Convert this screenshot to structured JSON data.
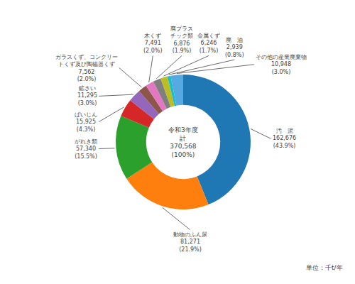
{
  "chart_data": {
    "type": "donut",
    "categories": [
      "汚　泥",
      "動物のふん尿",
      "がれき類",
      "ばいじん",
      "鉱さい",
      "ガラスくず、コンクリー\nトくず及び陶磁器くず",
      "木くず",
      "廃プラス\nチック類",
      "金属くず",
      "廃　油",
      "その他の産業廃棄物"
    ],
    "values": [
      162676,
      81271,
      57340,
      15925,
      11295,
      7562,
      7491,
      6876,
      6246,
      2939,
      10948
    ],
    "value_labels": [
      "162,676",
      "81,271",
      "57,340",
      "15,925",
      "11,295",
      "7,562",
      "7,491",
      "6,876",
      "6,246",
      "2,939",
      "10,948"
    ],
    "percentages": [
      43.9,
      21.9,
      15.5,
      4.3,
      3.0,
      2.0,
      2.0,
      1.9,
      1.7,
      0.8,
      3.0
    ],
    "percentage_labels": [
      "(43.9%)",
      "(21.9%)",
      "(15.5%)",
      "(4.3%)",
      "(3.0%)",
      "(2.0%)",
      "(2.0%)",
      "(1.9%)",
      "(1.7%)",
      "(0.8%)",
      "(3.0%)"
    ],
    "center_labels": [
      "令和3年度",
      "計",
      "370,568",
      "(100%)"
    ],
    "unit_label": "単位：千t/年"
  }
}
